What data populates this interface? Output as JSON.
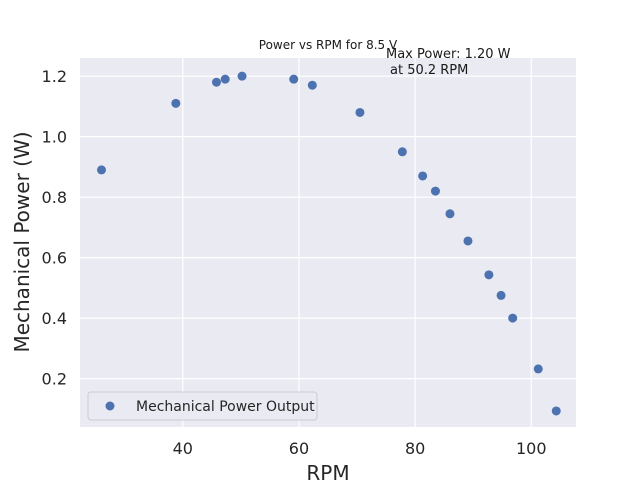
{
  "chart_data": {
    "type": "scatter",
    "title": "Power vs RPM for 8.5 V",
    "xlabel": "RPM",
    "ylabel": "Mechanical Power (W)",
    "xlim": [
      22.3,
      107.7
    ],
    "ylim": [
      0.04,
      1.26
    ],
    "xticks": [
      40,
      60,
      80,
      100
    ],
    "yticks": [
      0.2,
      0.4,
      0.6,
      0.8,
      1.0,
      1.2
    ],
    "xtick_labels": [
      "40",
      "60",
      "80",
      "100"
    ],
    "ytick_labels": [
      "0.2",
      "0.4",
      "0.6",
      "0.8",
      "1.0",
      "1.2"
    ],
    "grid": true,
    "legend_position": "lower-left",
    "series": [
      {
        "name": "Mechanical Power Output",
        "color": "#4c72b0",
        "points": [
          {
            "x": 26.0,
            "y": 0.89
          },
          {
            "x": 38.8,
            "y": 1.11
          },
          {
            "x": 45.8,
            "y": 1.18
          },
          {
            "x": 47.3,
            "y": 1.19
          },
          {
            "x": 50.2,
            "y": 1.2
          },
          {
            "x": 59.1,
            "y": 1.19
          },
          {
            "x": 62.3,
            "y": 1.17
          },
          {
            "x": 70.5,
            "y": 1.08
          },
          {
            "x": 77.8,
            "y": 0.95
          },
          {
            "x": 81.3,
            "y": 0.87
          },
          {
            "x": 83.5,
            "y": 0.82
          },
          {
            "x": 86.0,
            "y": 0.745
          },
          {
            "x": 89.1,
            "y": 0.655
          },
          {
            "x": 92.7,
            "y": 0.543
          },
          {
            "x": 94.8,
            "y": 0.475
          },
          {
            "x": 96.8,
            "y": 0.4
          },
          {
            "x": 101.2,
            "y": 0.232
          },
          {
            "x": 104.3,
            "y": 0.093
          }
        ]
      }
    ],
    "annotation": {
      "line1": "Max Power: 1.20 W",
      "line2": "at 50.2 RPM"
    }
  }
}
